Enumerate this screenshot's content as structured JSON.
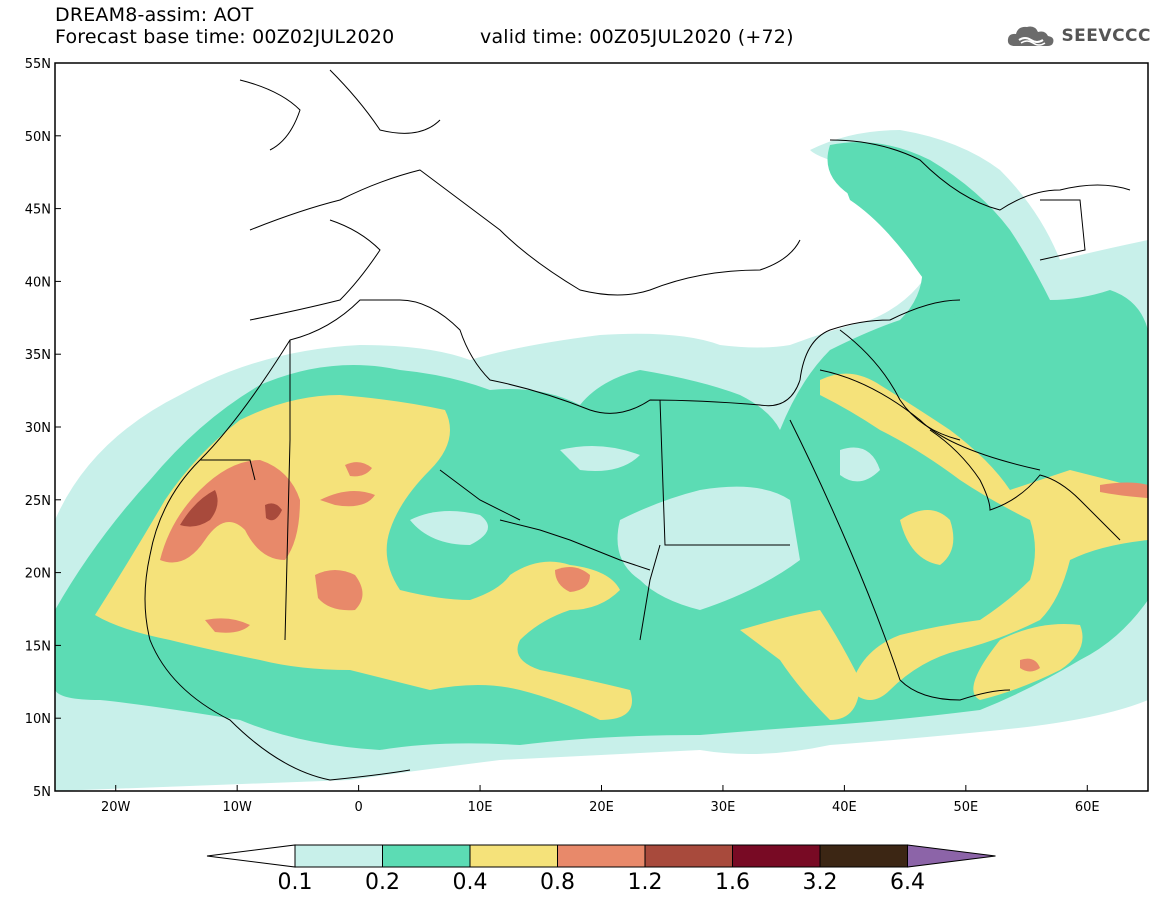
{
  "header": {
    "title": "DREAM8-assim: AOT",
    "base_time": "Forecast base time: 00Z02JUL2020",
    "valid_time": "valid time: 00Z05JUL2020 (+72)",
    "logo_text": "SEEVCCC"
  },
  "map": {
    "lon_range": [
      -25,
      65
    ],
    "lat_range": [
      5,
      55
    ],
    "lat_labels": [
      "55N",
      "50N",
      "45N",
      "40N",
      "35N",
      "30N",
      "25N",
      "20N",
      "15N",
      "10N",
      "5N"
    ],
    "lon_labels": [
      "20W",
      "10W",
      "0",
      "10E",
      "20E",
      "30E",
      "40E",
      "50E",
      "60E"
    ]
  },
  "colorbar": {
    "labels": [
      "0.1",
      "0.2",
      "0.4",
      "0.8",
      "1.2",
      "1.6",
      "3.2",
      "6.4"
    ],
    "colors": [
      "#ffffff",
      "#c8f0ea",
      "#5cdcb4",
      "#f5e27a",
      "#e8896a",
      "#a84a3c",
      "#780a24",
      "#3c2614",
      "#8c64a8"
    ]
  },
  "colors": {
    "level1": "#c8f0ea",
    "level2": "#5cdcb4",
    "level3": "#f5e27a",
    "level4": "#e8896a",
    "level5": "#a84a3c"
  }
}
